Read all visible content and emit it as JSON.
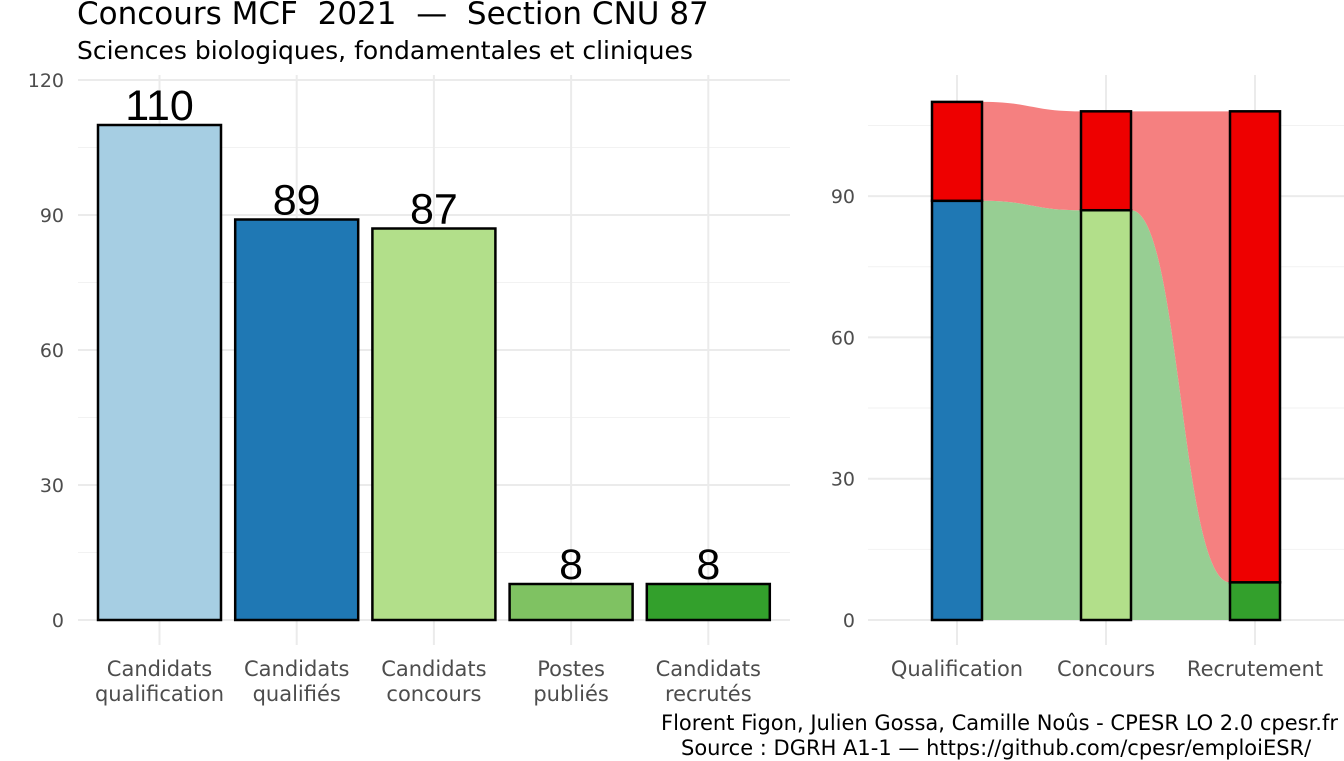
{
  "title": "Concours MCF  2021  —  Section CNU 87",
  "subtitle": "Sciences biologiques, fondamentales et cliniques",
  "caption": {
    "line1": "Florent Figon, Julien Gossa, Camille Noûs - CPESR LO 2.0 cpesr.fr",
    "line2": "Source : DGRH A1-1 — https://github.com/cpesr/emploiESR/"
  },
  "chart_data": [
    {
      "type": "bar",
      "title": "",
      "xlabel": "",
      "ylabel": "",
      "ylim": [
        0,
        120
      ],
      "yticks": [
        "0",
        "30",
        "60",
        "90",
        "120"
      ],
      "grid": true,
      "categories": [
        [
          "Candidats",
          "qualification"
        ],
        [
          "Candidats",
          "qualifiés"
        ],
        [
          "Candidats",
          "concours"
        ],
        [
          "Postes",
          "publiés"
        ],
        [
          "Candidats",
          "recrutés"
        ]
      ],
      "values": [
        110,
        89,
        87,
        8,
        8
      ],
      "data_labels": [
        "110",
        "89",
        "87",
        "8",
        "8"
      ],
      "colors": [
        "#a6cee3",
        "#1f78b4",
        "#b2df8a",
        "#7fc262",
        "#33a02c"
      ]
    },
    {
      "type": "bar",
      "stacked": true,
      "flows": true,
      "title": "",
      "ylim": [
        0,
        115
      ],
      "yticks": [
        "0",
        "30",
        "60",
        "90"
      ],
      "grid": true,
      "categories": [
        "Qualification",
        "Concours",
        "Recrutement"
      ],
      "series": [
        {
          "values": [
            89,
            87,
            8
          ],
          "colors": [
            "#1f78b4",
            "#b2df8a",
            "#33a02c"
          ],
          "flow_color": "#97ce93"
        },
        {
          "values": [
            21,
            21,
            100
          ],
          "colors": [
            "#ee0000",
            "#ee0000",
            "#ee0000"
          ],
          "flow_color": "#f58080"
        }
      ]
    }
  ]
}
